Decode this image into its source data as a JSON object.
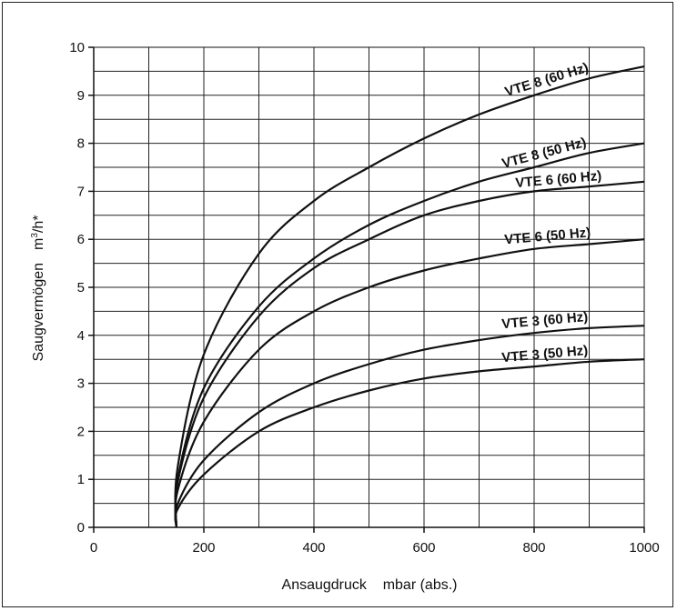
{
  "chart_data": {
    "type": "line",
    "xlabel": "Ansaugdruck    mbar (abs.)",
    "ylabel_parts": [
      "Saugvermögen",
      "m",
      "3",
      "/h*"
    ],
    "xlim": [
      0,
      1000
    ],
    "ylim": [
      0,
      10
    ],
    "x_ticks": [
      "0",
      "200",
      "400",
      "600",
      "800",
      "1000"
    ],
    "y_ticks": [
      "0",
      "1",
      "2",
      "3",
      "4",
      "5",
      "6",
      "7",
      "8",
      "9",
      "10"
    ],
    "grid": true,
    "x": [
      150,
      200,
      300,
      400,
      500,
      600,
      700,
      800,
      900,
      1000
    ],
    "series": [
      {
        "name": "VTE 8 (60 Hz)",
        "values": [
          0,
          3.6,
          5.7,
          6.8,
          7.5,
          8.1,
          8.6,
          9.0,
          9.35,
          9.6
        ]
      },
      {
        "name": "VTE 8 (50 Hz)",
        "values": [
          0,
          2.9,
          4.6,
          5.6,
          6.3,
          6.8,
          7.2,
          7.5,
          7.8,
          8.0
        ]
      },
      {
        "name": "VTE 6 (60 Hz)",
        "values": [
          0,
          2.7,
          4.4,
          5.4,
          6.0,
          6.5,
          6.8,
          7.0,
          7.1,
          7.2
        ]
      },
      {
        "name": "VTE 6 (50 Hz)",
        "values": [
          0,
          2.2,
          3.7,
          4.5,
          5.0,
          5.35,
          5.6,
          5.8,
          5.9,
          6.0
        ]
      },
      {
        "name": "VTE 3 (60 Hz)",
        "values": [
          0,
          1.4,
          2.4,
          3.0,
          3.4,
          3.7,
          3.9,
          4.05,
          4.15,
          4.2
        ]
      },
      {
        "name": "VTE 3 (50 Hz)",
        "values": [
          0,
          1.1,
          2.0,
          2.5,
          2.85,
          3.1,
          3.25,
          3.35,
          3.45,
          3.5
        ]
      }
    ]
  }
}
